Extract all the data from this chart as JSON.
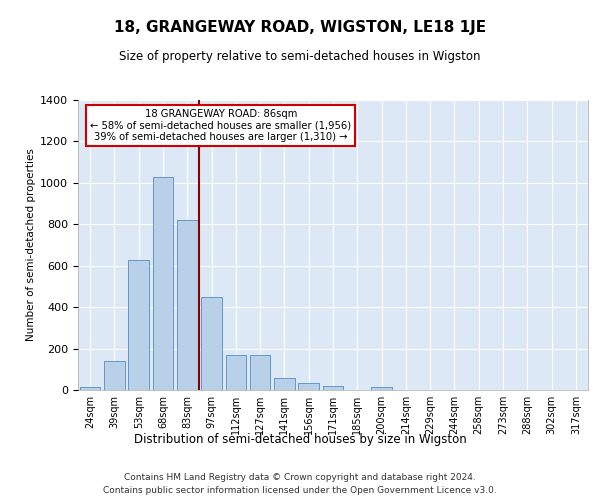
{
  "title": "18, GRANGEWAY ROAD, WIGSTON, LE18 1JE",
  "subtitle": "Size of property relative to semi-detached houses in Wigston",
  "xlabel": "Distribution of semi-detached houses by size in Wigston",
  "ylabel": "Number of semi-detached properties",
  "footer_line1": "Contains HM Land Registry data © Crown copyright and database right 2024.",
  "footer_line2": "Contains public sector information licensed under the Open Government Licence v3.0.",
  "bin_labels": [
    "24sqm",
    "39sqm",
    "53sqm",
    "68sqm",
    "83sqm",
    "97sqm",
    "112sqm",
    "127sqm",
    "141sqm",
    "156sqm",
    "171sqm",
    "185sqm",
    "200sqm",
    "214sqm",
    "229sqm",
    "244sqm",
    "258sqm",
    "273sqm",
    "288sqm",
    "302sqm",
    "317sqm"
  ],
  "bar_values": [
    15,
    140,
    630,
    1030,
    820,
    450,
    170,
    170,
    60,
    35,
    20,
    0,
    15,
    0,
    0,
    0,
    0,
    0,
    0,
    0,
    0
  ],
  "bar_color": "#b8d0e8",
  "bar_edge_color": "#6699cc",
  "background_color": "#dce8f5",
  "grid_color": "#ffffff",
  "red_line_x": 4.5,
  "annotation_title": "18 GRANGEWAY ROAD: 86sqm",
  "annotation_line1": "← 58% of semi-detached houses are smaller (1,956)",
  "annotation_line2": "39% of semi-detached houses are larger (1,310) →",
  "annotation_box_color": "#ffffff",
  "annotation_box_edge_color": "#cc0000",
  "red_line_color": "#880000",
  "ylim": [
    0,
    1400
  ],
  "yticks": [
    0,
    200,
    400,
    600,
    800,
    1000,
    1200,
    1400
  ]
}
